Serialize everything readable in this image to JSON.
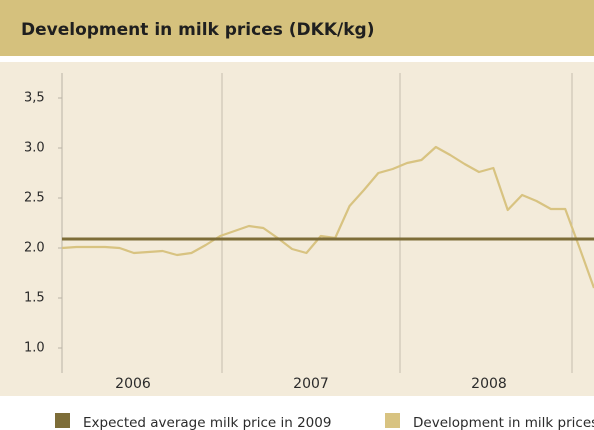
{
  "chart_data": {
    "type": "line",
    "title": "Development in milk prices (DKK/kg)",
    "categories": [
      null,
      null,
      null,
      null,
      null,
      null,
      null,
      null,
      null,
      null,
      null,
      null,
      null,
      null,
      null,
      null,
      null,
      null,
      null,
      null,
      null,
      null,
      null,
      null,
      null,
      null,
      null,
      null,
      null,
      null,
      null,
      null,
      null,
      null,
      null,
      null,
      null,
      null
    ],
    "year_labels": [
      "2006",
      "2007",
      "2008"
    ],
    "series": [
      {
        "name": "Expected average milk price in 2009",
        "color": "#7d6d38",
        "values": [
          2.09,
          2.09,
          2.09,
          2.09,
          2.09,
          2.09,
          2.09,
          2.09,
          2.09,
          2.09,
          2.09,
          2.09,
          2.09,
          2.09,
          2.09,
          2.09,
          2.09,
          2.09,
          2.09,
          2.09,
          2.09,
          2.09,
          2.09,
          2.09,
          2.09,
          2.09,
          2.09,
          2.09,
          2.09,
          2.09,
          2.09,
          2.09,
          2.09,
          2.09,
          2.09,
          2.09,
          2.09,
          2.09
        ]
      },
      {
        "name": "Development in milk prices",
        "color": "#d8c381",
        "values": [
          2.0,
          2.01,
          2.01,
          2.01,
          2.0,
          1.95,
          1.96,
          1.97,
          1.93,
          1.95,
          2.03,
          2.12,
          2.17,
          2.22,
          2.2,
          2.1,
          1.99,
          1.95,
          2.12,
          2.1,
          2.42,
          2.58,
          2.75,
          2.79,
          2.85,
          2.88,
          3.01,
          2.93,
          2.84,
          2.76,
          2.8,
          2.38,
          2.53,
          2.47,
          2.39,
          2.39,
          2.0,
          1.6
        ]
      }
    ],
    "ylim": [
      0.75,
      3.75
    ],
    "yticks": [
      {
        "value": 1.0,
        "label": "1.0"
      },
      1.5,
      {
        "value": 2.0,
        "label": "2.0"
      },
      2.5,
      {
        "value": 3.0,
        "label": "3.0"
      },
      {
        "value": 3.5,
        "label": "3,5"
      }
    ],
    "grid": false
  }
}
